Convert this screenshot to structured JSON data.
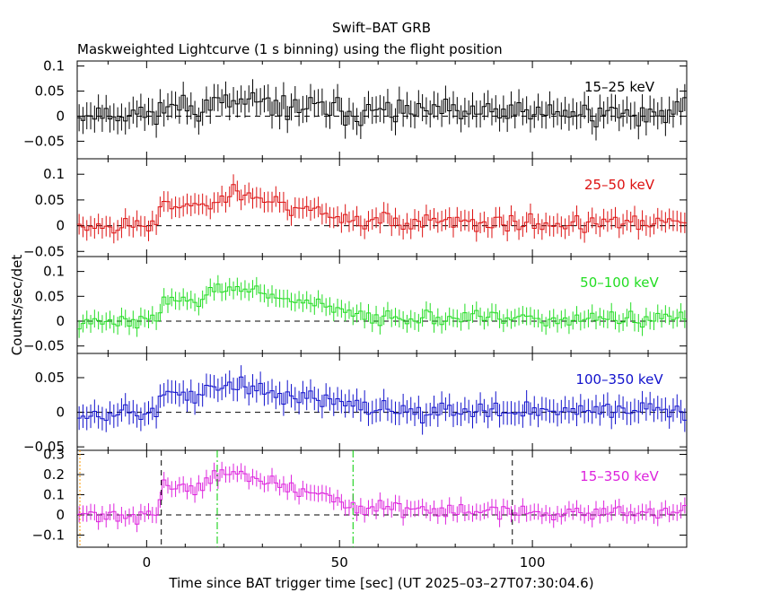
{
  "title": "Swift–BAT GRB",
  "subtitle": "Maskweighted Lightcurve (1 s binning) using the flight position",
  "chart_data": {
    "type": "line",
    "step": true,
    "binning_s": 1,
    "xlabel": "Time since BAT trigger time [sec] (UT 2025–03–27T07:30:04.6)",
    "ylabel": "Counts/sec/det",
    "xlim": [
      -18,
      140
    ],
    "x_ticks": [
      0,
      50,
      100
    ],
    "x_tick_labels": [
      "0",
      "50",
      "100"
    ],
    "vertical_markers": [
      {
        "panel": 4,
        "x": -17.3,
        "style": "dotted",
        "color": "#ff9a00"
      },
      {
        "panel": 4,
        "x": 3.8,
        "style": "dashed",
        "color": "#000000"
      },
      {
        "panel": 4,
        "x": 18.3,
        "style": "dashdot",
        "color": "#00cc00"
      },
      {
        "panel": 4,
        "x": 53.5,
        "style": "dashdot",
        "color": "#00cc00"
      },
      {
        "panel": 4,
        "x": 94.8,
        "style": "dashed",
        "color": "#000000"
      }
    ],
    "panels": [
      {
        "name": "15–25 keV",
        "color": "#000000",
        "ylim": [
          -0.085,
          0.11
        ],
        "y_ticks": [
          -0.05,
          0,
          0.05,
          0.1
        ],
        "y_tick_labels": [
          "−0.05",
          "0",
          "0.05",
          "0.1"
        ],
        "base": 0.005,
        "burst": 0.022,
        "noise": 0.03,
        "err": 0.027,
        "seed": 11
      },
      {
        "name": "25–50 keV",
        "color": "#dd1111",
        "ylim": [
          -0.06,
          0.13
        ],
        "y_ticks": [
          -0.05,
          0,
          0.05,
          0.1
        ],
        "y_tick_labels": [
          "−0.05",
          "0",
          "0.05",
          "0.1"
        ],
        "base": 0.0,
        "burst": 0.065,
        "noise": 0.022,
        "err": 0.02,
        "seed": 23
      },
      {
        "name": "50–100 keV",
        "color": "#22dd22",
        "ylim": [
          -0.065,
          0.13
        ],
        "y_ticks": [
          -0.05,
          0,
          0.05,
          0.1
        ],
        "y_tick_labels": [
          "−0.05",
          "0",
          "0.05",
          "0.1"
        ],
        "base": 0.0,
        "burst": 0.07,
        "noise": 0.018,
        "err": 0.018,
        "seed": 37
      },
      {
        "name": "100–350 keV",
        "color": "#1111cc",
        "ylim": [
          -0.055,
          0.085
        ],
        "y_ticks": [
          -0.05,
          0,
          0.05
        ],
        "y_tick_labels": [
          "−0.05",
          "0",
          "0.05"
        ],
        "base": 0.0,
        "burst": 0.04,
        "noise": 0.016,
        "err": 0.017,
        "seed": 53
      },
      {
        "name": "15–350 keV",
        "color": "#dd22dd",
        "ylim": [
          -0.16,
          0.32
        ],
        "y_ticks": [
          -0.1,
          0,
          0.1,
          0.2,
          0.3
        ],
        "y_tick_labels": [
          "−0.1",
          "0",
          "0.1",
          "0.2",
          "0.3"
        ],
        "base": 0.0,
        "burst": 0.22,
        "noise": 0.045,
        "err": 0.04,
        "seed": 71
      }
    ]
  }
}
